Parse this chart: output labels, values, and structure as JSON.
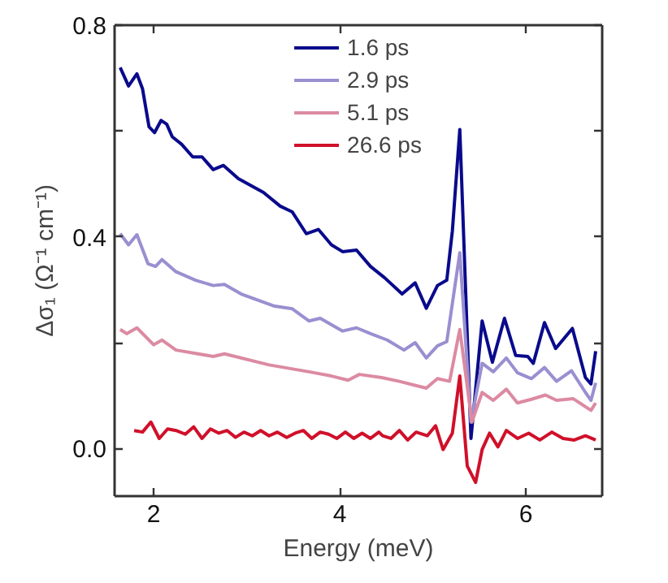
{
  "chart_data": {
    "type": "line",
    "xlabel": "Energy (meV)",
    "ylabel": "Δσ₁ (Ω⁻¹ cm⁻¹)",
    "xlim": [
      1.58,
      6.82
    ],
    "ylim": [
      -0.09,
      0.8
    ],
    "xticks": [
      2,
      4,
      6
    ],
    "yticks": [
      {
        "value": 0.0,
        "label": "0.0"
      },
      {
        "value": 0.2,
        "label": null
      },
      {
        "value": 0.4,
        "label": "0.4"
      },
      {
        "value": 0.6,
        "label": null
      },
      {
        "value": 0.8,
        "label": "0.8"
      }
    ],
    "grid": false,
    "legend": "top",
    "line_style": "solid",
    "series": [
      {
        "name": "1.6 ps",
        "color": "#0a0a8c",
        "x": [
          1.64,
          1.73,
          1.82,
          1.88,
          1.95,
          2.01,
          2.08,
          2.14,
          2.2,
          2.3,
          2.42,
          2.52,
          2.64,
          2.75,
          2.91,
          3.18,
          3.36,
          3.49,
          3.64,
          3.77,
          3.91,
          4.03,
          4.18,
          4.33,
          4.48,
          4.67,
          4.81,
          4.93,
          5.05,
          5.15,
          5.21,
          5.29,
          5.41,
          5.53,
          5.64,
          5.77,
          5.89,
          6.02,
          6.08,
          6.2,
          6.32,
          6.5,
          6.64,
          6.7,
          6.75
        ],
        "values": [
          0.72,
          0.685,
          0.708,
          0.68,
          0.608,
          0.597,
          0.62,
          0.613,
          0.589,
          0.575,
          0.551,
          0.551,
          0.527,
          0.535,
          0.51,
          0.484,
          0.458,
          0.447,
          0.406,
          0.414,
          0.385,
          0.372,
          0.375,
          0.344,
          0.323,
          0.292,
          0.313,
          0.265,
          0.308,
          0.318,
          0.411,
          0.603,
          0.019,
          0.241,
          0.163,
          0.246,
          0.176,
          0.174,
          0.161,
          0.238,
          0.189,
          0.227,
          0.134,
          0.122,
          0.184
        ]
      },
      {
        "name": "2.9 ps",
        "color": "#9a8fd0",
        "x": [
          1.64,
          1.73,
          1.82,
          1.94,
          2.02,
          2.09,
          2.24,
          2.45,
          2.64,
          2.76,
          2.94,
          3.3,
          3.49,
          3.67,
          3.79,
          4.03,
          4.18,
          4.33,
          4.51,
          4.69,
          4.81,
          4.93,
          5.05,
          5.15,
          5.29,
          5.41,
          5.53,
          5.65,
          5.79,
          5.91,
          6.06,
          6.2,
          6.33,
          6.49,
          6.64,
          6.7,
          6.75
        ],
        "values": [
          0.406,
          0.385,
          0.404,
          0.349,
          0.344,
          0.357,
          0.334,
          0.318,
          0.308,
          0.31,
          0.292,
          0.269,
          0.264,
          0.241,
          0.246,
          0.222,
          0.228,
          0.217,
          0.205,
          0.186,
          0.2,
          0.171,
          0.194,
          0.202,
          0.37,
          0.05,
          0.161,
          0.145,
          0.171,
          0.143,
          0.132,
          0.153,
          0.127,
          0.147,
          0.106,
          0.091,
          0.124
        ]
      },
      {
        "name": "5.1 ps",
        "color": "#dc8aa2",
        "x": [
          1.64,
          1.71,
          1.82,
          2.0,
          2.09,
          2.24,
          2.64,
          2.76,
          3.24,
          3.67,
          3.91,
          4.09,
          4.21,
          4.45,
          4.64,
          4.93,
          5.05,
          5.18,
          5.29,
          5.42,
          5.53,
          5.65,
          5.79,
          5.91,
          6.06,
          6.21,
          6.33,
          6.51,
          6.7,
          6.75
        ],
        "values": [
          0.225,
          0.217,
          0.228,
          0.196,
          0.205,
          0.186,
          0.174,
          0.179,
          0.158,
          0.145,
          0.137,
          0.129,
          0.14,
          0.134,
          0.127,
          0.114,
          0.132,
          0.127,
          0.225,
          0.05,
          0.106,
          0.091,
          0.112,
          0.086,
          0.093,
          0.101,
          0.091,
          0.094,
          0.072,
          0.086
        ]
      },
      {
        "name": "26.6 ps",
        "color": "#d0102a",
        "x": [
          1.79,
          1.88,
          1.97,
          2.06,
          2.15,
          2.24,
          2.34,
          2.43,
          2.52,
          2.61,
          2.7,
          2.79,
          2.88,
          2.97,
          3.06,
          3.15,
          3.24,
          3.33,
          3.43,
          3.52,
          3.61,
          3.7,
          3.79,
          3.88,
          3.97,
          4.06,
          4.15,
          4.24,
          4.33,
          4.42,
          4.46,
          4.55,
          4.64,
          4.73,
          4.82,
          4.94,
          5.03,
          5.11,
          5.21,
          5.29,
          5.37,
          5.46,
          5.53,
          5.61,
          5.7,
          5.79,
          5.91,
          6.03,
          6.15,
          6.28,
          6.4,
          6.52,
          6.64,
          6.75
        ],
        "values": [
          0.034,
          0.031,
          0.05,
          0.019,
          0.037,
          0.034,
          0.027,
          0.041,
          0.019,
          0.037,
          0.029,
          0.034,
          0.021,
          0.031,
          0.024,
          0.034,
          0.024,
          0.031,
          0.021,
          0.029,
          0.034,
          0.019,
          0.031,
          0.027,
          0.019,
          0.031,
          0.019,
          0.029,
          0.019,
          0.031,
          0.024,
          0.019,
          0.034,
          0.016,
          0.031,
          0.024,
          0.043,
          -0.002,
          0.029,
          0.137,
          -0.033,
          -0.064,
          -0.002,
          0.029,
          0.003,
          0.034,
          0.019,
          0.029,
          0.016,
          0.031,
          0.019,
          0.016,
          0.024,
          0.016
        ]
      }
    ]
  }
}
